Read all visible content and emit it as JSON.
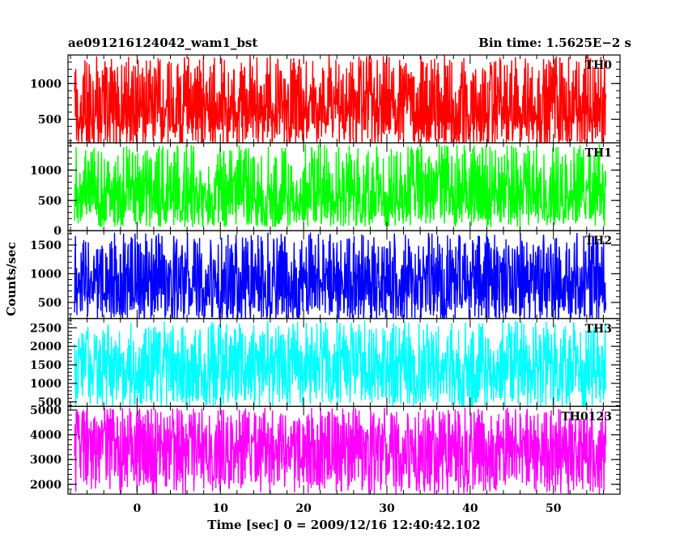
{
  "header": {
    "title": "ae091216124042_wam1_bst",
    "bin_time": "Bin time: 1.5625E−2 s"
  },
  "chart_data": {
    "type": "line",
    "xlabel": "Time [sec] 0 = 2009/12/16 12:40:42.102",
    "ylabel": "Counts/sec",
    "xlim": [
      -8.3,
      58
    ],
    "x_ticks": [
      0,
      10,
      20,
      30,
      40,
      50
    ],
    "x_start": -7.5,
    "x_end": 56.3,
    "series": [
      {
        "name": "TH0",
        "color": "#ff0000",
        "ylim": [
          170,
          1400
        ],
        "y_ticks": [
          500,
          1000
        ],
        "y_minor": 100,
        "mean": 650,
        "noise_low": 100,
        "noise_high": 1400
      },
      {
        "name": "TH1",
        "color": "#00ff00",
        "ylim": [
          0,
          1450
        ],
        "y_ticks": [
          0,
          500,
          1000
        ],
        "y_minor": 100,
        "mean": 560,
        "noise_low": 60,
        "noise_high": 1430
      },
      {
        "name": "TH2",
        "color": "#0000ff",
        "ylim": [
          220,
          1750
        ],
        "y_ticks": [
          500,
          1000,
          1500
        ],
        "y_minor": 100,
        "mean": 850,
        "noise_low": 150,
        "noise_high": 1720
      },
      {
        "name": "TH3",
        "color": "#00ffff",
        "ylim": [
          380,
          2750
        ],
        "y_ticks": [
          500,
          1000,
          1500,
          2000,
          2500
        ],
        "y_minor": 100,
        "mean": 1500,
        "noise_low": 350,
        "noise_high": 2700
      },
      {
        "name": "TH0123",
        "color": "#ff00ff",
        "ylim": [
          1600,
          5150
        ],
        "y_ticks": [
          2000,
          3000,
          4000,
          5000
        ],
        "y_minor": 200,
        "mean": 3500,
        "noise_low": 1600,
        "noise_high": 5100
      }
    ]
  }
}
